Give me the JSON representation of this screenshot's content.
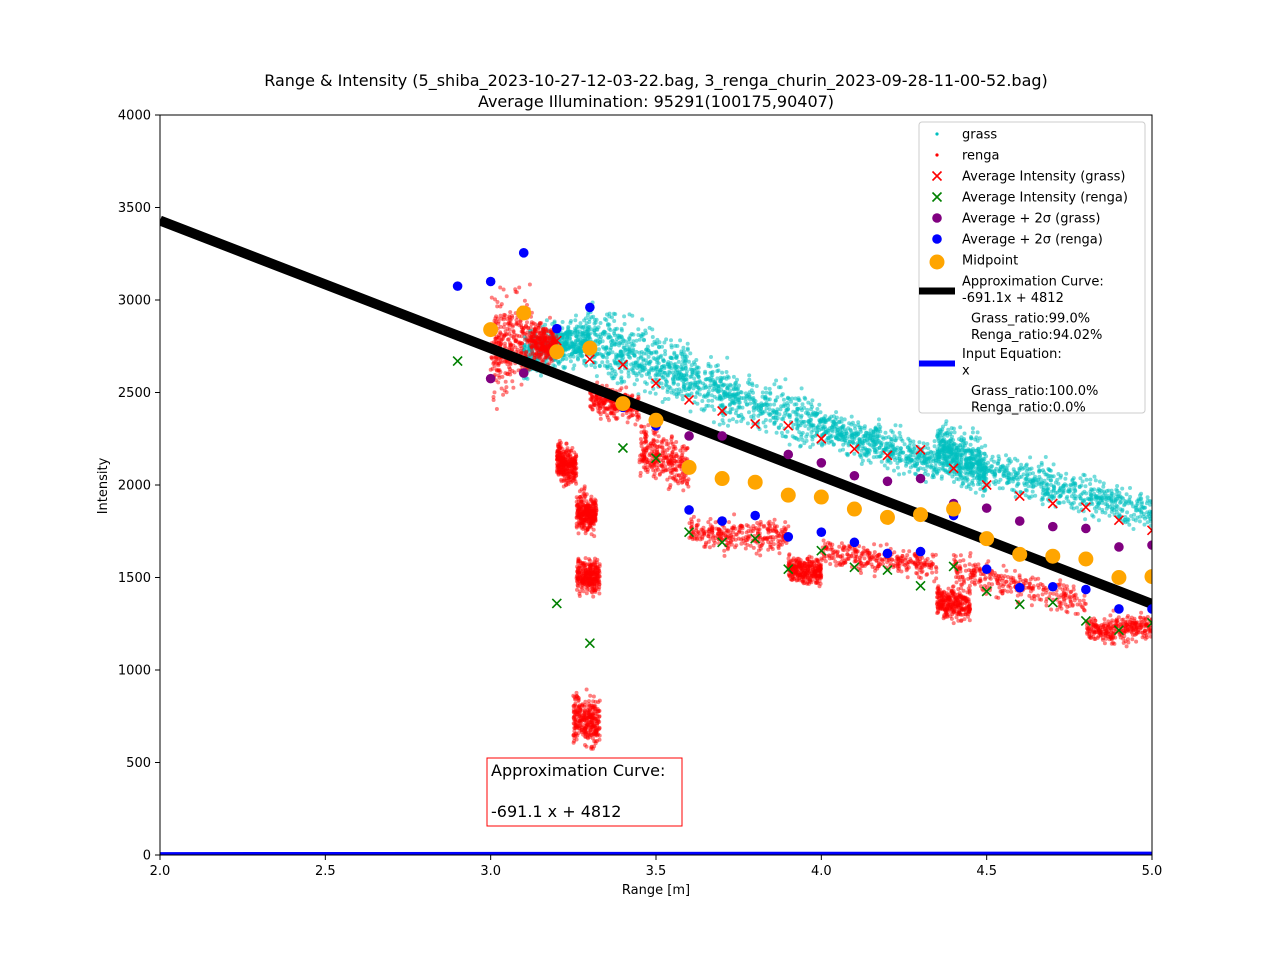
{
  "chart_data": {
    "type": "scatter",
    "title": "Range & Intensity (5_shiba_2023-10-27-12-03-22.bag, 3_renga_churin_2023-09-28-11-00-52.bag)",
    "subtitle": "Average Illumination: 95291(100175,90407)",
    "xlabel": "Range [m]",
    "ylabel": "Intensity",
    "xlim": [
      2.0,
      5.0
    ],
    "ylim": [
      0,
      4000
    ],
    "xticks": [
      "2.0",
      "2.5",
      "3.0",
      "3.5",
      "4.0",
      "4.5",
      "5.0"
    ],
    "yticks": [
      "0",
      "500",
      "1000",
      "1500",
      "2000",
      "2500",
      "3000",
      "3500",
      "4000"
    ],
    "grid": false,
    "legend_position": "top-right",
    "colors": {
      "grass": "#00bfbf",
      "renga": "#ff0000",
      "avg_grass": "#ff0000",
      "avg_renga": "#008000",
      "plus2s_grass": "#800080",
      "plus2s_renga": "#0000ff",
      "midpoint": "#ffa500",
      "approx_curve": "#000000",
      "input_equation": "#0000ff"
    },
    "legend": [
      {
        "key": "grass",
        "label": "grass",
        "marker": "dot"
      },
      {
        "key": "renga",
        "label": "renga",
        "marker": "dot"
      },
      {
        "key": "avg_grass",
        "label": "Average Intensity (grass)",
        "marker": "x"
      },
      {
        "key": "avg_renga",
        "label": "Average Intensity (renga)",
        "marker": "x"
      },
      {
        "key": "plus2s_grass",
        "label": "Average + 2σ (grass)",
        "marker": "circle"
      },
      {
        "key": "plus2s_renga",
        "label": "Average + 2σ (renga)",
        "marker": "circle"
      },
      {
        "key": "midpoint",
        "label": "Midpoint",
        "marker": "bigcircle"
      },
      {
        "key": "approx_curve",
        "label": "Approximation Curve:",
        "label2": "-691.1x + 4812",
        "marker": "line",
        "extra": [
          "Grass_ratio:99.0%",
          "Renga_ratio:94.02%"
        ]
      },
      {
        "key": "input_equation",
        "label": "Input Equation:",
        "label2": "x",
        "marker": "line",
        "extra": [
          "Grass_ratio:100.0%",
          "Renga_ratio:0.0%"
        ]
      }
    ],
    "annotation": {
      "line1": "Approximation Curve:",
      "line2": "-691.1 x + 4812"
    },
    "series": [
      {
        "name": "Average Intensity (grass)",
        "marker": "x",
        "points": [
          [
            3.2,
            2780
          ],
          [
            3.3,
            2680
          ],
          [
            3.4,
            2650
          ],
          [
            3.5,
            2550
          ],
          [
            3.6,
            2460
          ],
          [
            3.7,
            2400
          ],
          [
            3.8,
            2330
          ],
          [
            3.9,
            2320
          ],
          [
            4.0,
            2250
          ],
          [
            4.1,
            2195
          ],
          [
            4.2,
            2160
          ],
          [
            4.3,
            2190
          ],
          [
            4.4,
            2090
          ],
          [
            4.5,
            2000
          ],
          [
            4.6,
            1940
          ],
          [
            4.7,
            1900
          ],
          [
            4.8,
            1880
          ],
          [
            4.9,
            1810
          ],
          [
            5.0,
            1755
          ]
        ]
      },
      {
        "name": "Average Intensity (renga)",
        "marker": "x",
        "points": [
          [
            2.9,
            2670
          ],
          [
            3.2,
            1360
          ],
          [
            3.3,
            1145
          ],
          [
            3.4,
            2200
          ],
          [
            3.5,
            2145
          ],
          [
            3.6,
            1745
          ],
          [
            3.7,
            1690
          ],
          [
            3.8,
            1710
          ],
          [
            3.9,
            1545
          ],
          [
            4.0,
            1645
          ],
          [
            4.1,
            1555
          ],
          [
            4.2,
            1540
          ],
          [
            4.3,
            1455
          ],
          [
            4.4,
            1560
          ],
          [
            4.5,
            1425
          ],
          [
            4.6,
            1355
          ],
          [
            4.7,
            1365
          ],
          [
            4.8,
            1265
          ],
          [
            4.9,
            1215
          ],
          [
            5.0,
            1255
          ]
        ]
      },
      {
        "name": "Average + 2σ (grass)",
        "marker": "circle",
        "points": [
          [
            3.0,
            2575
          ],
          [
            3.1,
            2605
          ],
          [
            3.6,
            2265
          ],
          [
            3.7,
            2265
          ],
          [
            3.9,
            2165
          ],
          [
            4.0,
            2120
          ],
          [
            4.1,
            2050
          ],
          [
            4.2,
            2020
          ],
          [
            4.3,
            2035
          ],
          [
            4.4,
            1900
          ],
          [
            4.5,
            1875
          ],
          [
            4.6,
            1805
          ],
          [
            4.7,
            1775
          ],
          [
            4.8,
            1765
          ],
          [
            4.9,
            1665
          ],
          [
            5.0,
            1675
          ]
        ]
      },
      {
        "name": "Average + 2σ (renga)",
        "marker": "circle",
        "points": [
          [
            2.9,
            3075
          ],
          [
            3.0,
            3100
          ],
          [
            3.1,
            3255
          ],
          [
            3.2,
            2845
          ],
          [
            3.3,
            2960
          ],
          [
            3.4,
            2420
          ],
          [
            3.5,
            2320
          ],
          [
            3.6,
            1865
          ],
          [
            3.7,
            1805
          ],
          [
            3.8,
            1835
          ],
          [
            3.9,
            1720
          ],
          [
            4.0,
            1745
          ],
          [
            4.1,
            1690
          ],
          [
            4.2,
            1630
          ],
          [
            4.3,
            1640
          ],
          [
            4.4,
            1835
          ],
          [
            4.5,
            1545
          ],
          [
            4.6,
            1445
          ],
          [
            4.7,
            1450
          ],
          [
            4.8,
            1435
          ],
          [
            4.9,
            1330
          ],
          [
            5.0,
            1330
          ]
        ]
      },
      {
        "name": "Midpoint",
        "marker": "bigcircle",
        "points": [
          [
            3.0,
            2840
          ],
          [
            3.1,
            2930
          ],
          [
            3.2,
            2720
          ],
          [
            3.3,
            2740
          ],
          [
            3.4,
            2440
          ],
          [
            3.5,
            2350
          ],
          [
            3.6,
            2095
          ],
          [
            3.7,
            2035
          ],
          [
            3.8,
            2015
          ],
          [
            3.9,
            1945
          ],
          [
            4.0,
            1935
          ],
          [
            4.1,
            1870
          ],
          [
            4.2,
            1825
          ],
          [
            4.3,
            1840
          ],
          [
            4.4,
            1870
          ],
          [
            4.5,
            1710
          ],
          [
            4.6,
            1625
          ],
          [
            4.7,
            1615
          ],
          [
            4.8,
            1600
          ],
          [
            4.9,
            1500
          ],
          [
            5.0,
            1505
          ]
        ]
      },
      {
        "name": "Approximation Curve:",
        "marker": "line",
        "points": [
          [
            2.0,
            3429.8
          ],
          [
            5.0,
            1356.5
          ]
        ]
      },
      {
        "name": "Input Equation:",
        "marker": "line",
        "points": [
          [
            2.0,
            2
          ],
          [
            5.0,
            5
          ]
        ]
      }
    ],
    "scatter_clusters": {
      "grass": [
        {
          "x": [
            3.1,
            3.3
          ],
          "y_center": [
            2700,
            2800
          ],
          "spread": 130
        },
        {
          "x": [
            3.3,
            3.6
          ],
          "y_center": [
            2780,
            2600
          ],
          "spread": 190
        },
        {
          "x": [
            3.6,
            4.0
          ],
          "y_center": [
            2560,
            2320
          ],
          "spread": 150
        },
        {
          "x": [
            4.0,
            4.35
          ],
          "y_center": [
            2310,
            2120
          ],
          "spread": 110
        },
        {
          "x": [
            4.35,
            4.5
          ],
          "y_center": [
            2200,
            2080
          ],
          "spread": 150
        },
        {
          "x": [
            4.5,
            5.0
          ],
          "y_center": [
            2090,
            1850
          ],
          "spread": 110
        }
      ],
      "renga": [
        {
          "x": [
            3.0,
            3.12
          ],
          "y_center": [
            2750,
            2800
          ],
          "spread": 280
        },
        {
          "x": [
            3.12,
            3.2
          ],
          "y_center": [
            2790,
            2740
          ],
          "spread": 110
        },
        {
          "x": [
            3.2,
            3.26
          ],
          "y_center": [
            2130,
            2090
          ],
          "spread": 110
        },
        {
          "x": [
            3.26,
            3.32
          ],
          "y_center": [
            1860,
            1840
          ],
          "spread": 110
        },
        {
          "x": [
            3.26,
            3.33
          ],
          "y_center": [
            1520,
            1500
          ],
          "spread": 100
        },
        {
          "x": [
            3.25,
            3.33
          ],
          "y_center": [
            750,
            700
          ],
          "spread": 140
        },
        {
          "x": [
            3.3,
            3.45
          ],
          "y_center": [
            2470,
            2420
          ],
          "spread": 90
        },
        {
          "x": [
            3.45,
            3.6
          ],
          "y_center": [
            2200,
            2100
          ],
          "spread": 140
        },
        {
          "x": [
            3.6,
            3.9
          ],
          "y_center": [
            1740,
            1720
          ],
          "spread": 90
        },
        {
          "x": [
            3.9,
            4.0
          ],
          "y_center": [
            1550,
            1530
          ],
          "spread": 80
        },
        {
          "x": [
            4.0,
            4.35
          ],
          "y_center": [
            1640,
            1560
          ],
          "spread": 80
        },
        {
          "x": [
            4.35,
            4.45
          ],
          "y_center": [
            1370,
            1350
          ],
          "spread": 90
        },
        {
          "x": [
            4.4,
            4.8
          ],
          "y_center": [
            1550,
            1350
          ],
          "spread": 90
        },
        {
          "x": [
            4.8,
            5.0
          ],
          "y_center": [
            1220,
            1230
          ],
          "spread": 80
        }
      ]
    }
  }
}
